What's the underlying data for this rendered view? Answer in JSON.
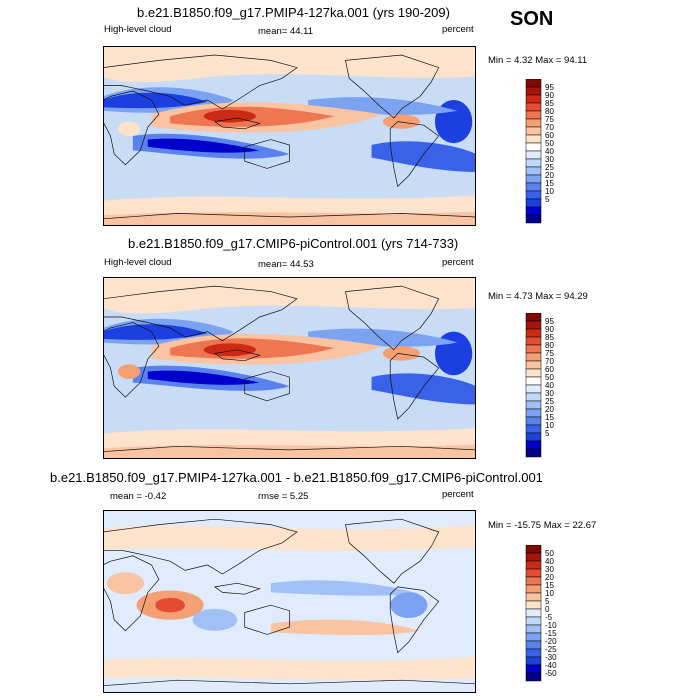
{
  "season": "SON",
  "colors": {
    "abs": [
      "#00008b",
      "#0000cd",
      "#1c3fe0",
      "#3a62e8",
      "#5a82ee",
      "#7ca2f2",
      "#a0c0f6",
      "#c2d8fa",
      "#e0ecfd",
      "#ffffff",
      "#fde2cc",
      "#fac3a2",
      "#f59f74",
      "#ee7650",
      "#e34c30",
      "#cc2a14",
      "#a4140a",
      "#7d0a05"
    ],
    "diff": [
      "#00008b",
      "#0000cd",
      "#1c3fe0",
      "#3a62e8",
      "#5a82ee",
      "#7ca2f2",
      "#a0c0f6",
      "#c2d8fa",
      "#e0ecfd",
      "#fde2cc",
      "#fac3a2",
      "#f59f74",
      "#ee7650",
      "#e34c30",
      "#cc2a14",
      "#a4140a",
      "#7d0a05"
    ]
  },
  "panels": [
    {
      "title": "b.e21.B1850.f09_g17.PMIP4-127ka.001 (yrs 190-209)",
      "left_label": "High-level cloud",
      "center_label": "mean=  44.11",
      "right_label": "percent",
      "minmax": "Min =   4.32 Max =  94.11",
      "levels": [
        "95",
        "90",
        "85",
        "80",
        "75",
        "70",
        "60",
        "50",
        "40",
        "30",
        "25",
        "20",
        "15",
        "10",
        "5"
      ]
    },
    {
      "title": "b.e21.B1850.f09_g17.CMIP6-piControl.001 (yrs 714-733)",
      "left_label": "High-level cloud",
      "center_label": "mean=  44.53",
      "right_label": "percent",
      "minmax": "Min =   4.73 Max =  94.29",
      "levels": [
        "95",
        "90",
        "85",
        "80",
        "75",
        "70",
        "60",
        "50",
        "40",
        "30",
        "25",
        "20",
        "15",
        "10",
        "5"
      ]
    },
    {
      "title": "b.e21.B1850.f09_g17.PMIP4-127ka.001 - b.e21.B1850.f09_g17.CMIP6-piControl.001",
      "left_label": "mean =  -0.42",
      "center_label": "rmse =   5.25",
      "right_label": "percent",
      "minmax": "Min = -15.75 Max =  22.67",
      "levels": [
        "50",
        "40",
        "30",
        "20",
        "15",
        "10",
        "5",
        "0",
        "-5",
        "-10",
        "-15",
        "-20",
        "-25",
        "-30",
        "-40",
        "-50"
      ]
    }
  ]
}
